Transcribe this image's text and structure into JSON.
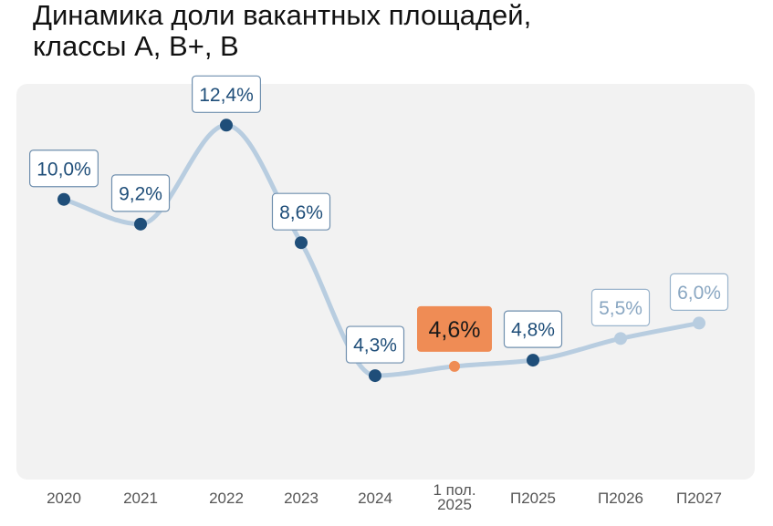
{
  "header": {
    "title": "Динамика доли вакантных площадей,\nклассы А, В+, В"
  },
  "chart_data": {
    "type": "line",
    "title": "Динамика доли вакантных площадей, классы А, В+, В",
    "categories": [
      "2020",
      "2021",
      "2022",
      "2023",
      "2024",
      "1 пол.\n2025",
      "П2025",
      "П2026",
      "П2027"
    ],
    "series": [
      {
        "values": [
          10.0,
          9.2,
          12.4,
          8.6,
          4.3,
          4.6,
          4.8,
          5.5,
          6.0
        ],
        "data_labels": [
          "10,0%",
          "9,2%",
          "12,4%",
          "8,6%",
          "4,3%",
          "4,6%",
          "4,8%",
          "5,5%",
          "6,0%"
        ],
        "point_kinds": [
          "actual",
          "actual",
          "actual",
          "actual",
          "actual",
          "highlight",
          "actual",
          "forecast",
          "forecast"
        ]
      }
    ],
    "ylim": [
      1.0,
      13.5
    ],
    "grid": false,
    "colors": {
      "line": "#b8cde0",
      "actual_point": "#1f4e79",
      "forecast_point": "#b8cde0",
      "highlight_point": "#ef8c55",
      "highlight_box": "#ef8c55",
      "panel_bg": "#f2f2f2",
      "actual_label_text": "#1f4e79",
      "forecast_label_text": "#8aa7c2",
      "axis_text": "#555555"
    }
  }
}
